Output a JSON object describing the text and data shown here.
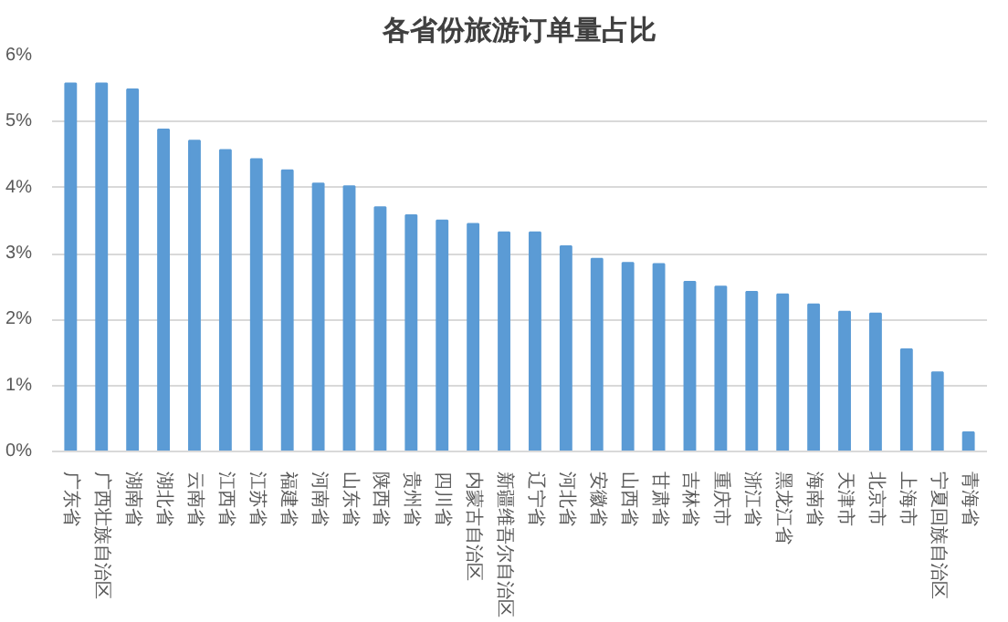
{
  "chart_data": {
    "type": "bar",
    "title": "各省份旅游订单量占比",
    "categories": [
      "广东省",
      "广西壮族自治区",
      "湖南省",
      "湖北省",
      "云南省",
      "江西省",
      "江苏省",
      "福建省",
      "河南省",
      "山东省",
      "陕西省",
      "贵州省",
      "四川省",
      "内蒙古自治区",
      "新疆维吾尔自治区",
      "辽宁省",
      "河北省",
      "安徽省",
      "山西省",
      "甘肃省",
      "吉林省",
      "重庆市",
      "浙江省",
      "黑龙江省",
      "海南省",
      "天津市",
      "北京市",
      "上海市",
      "宁夏回族自治区",
      "青海省"
    ],
    "values": [
      5.58,
      5.58,
      5.49,
      4.88,
      4.71,
      4.57,
      4.43,
      4.26,
      4.06,
      4.02,
      3.7,
      3.58,
      3.5,
      3.45,
      3.32,
      3.32,
      3.11,
      2.92,
      2.86,
      2.84,
      2.57,
      2.5,
      2.42,
      2.38,
      2.23,
      2.12,
      2.09,
      1.55,
      1.2,
      0.29
    ],
    "color": "#5b9bd5",
    "ylim": [
      0,
      6
    ],
    "yticks": [
      {
        "value": 0,
        "label": "0%"
      },
      {
        "value": 1,
        "label": "1%"
      },
      {
        "value": 2,
        "label": "2%"
      },
      {
        "value": 3,
        "label": "3%"
      },
      {
        "value": 4,
        "label": "4%"
      },
      {
        "value": 5,
        "label": "5%"
      },
      {
        "value": 6,
        "label": "6%"
      }
    ],
    "grid": "y"
  }
}
